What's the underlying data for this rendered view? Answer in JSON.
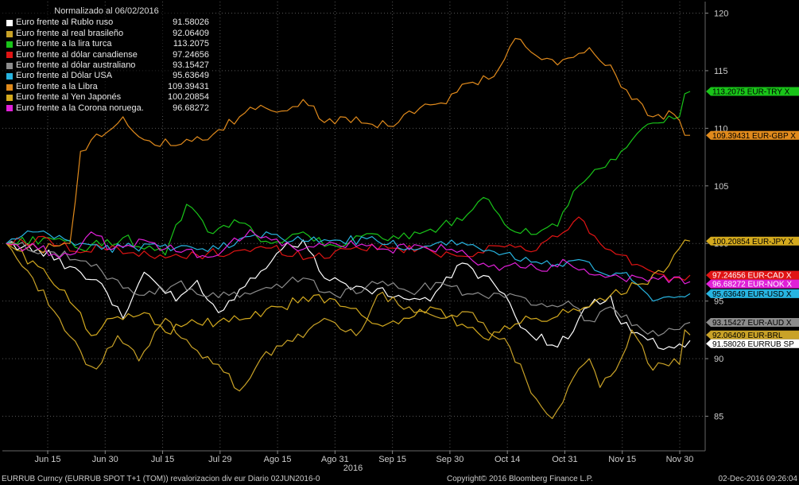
{
  "legend": {
    "title": "Normalizado al 06/02/2016",
    "items": [
      {
        "name": "Euro frente al Rublo ruso",
        "value": "91.58026",
        "color": "#ffffff"
      },
      {
        "name": "Euro frente al real brasileño",
        "value": "92.06409",
        "color": "#c9a227"
      },
      {
        "name": "Euro frente a la lira turca",
        "value": "113.2075",
        "color": "#19c419"
      },
      {
        "name": "Euro frente al dólar canadiense",
        "value": "97.24656",
        "color": "#e01414"
      },
      {
        "name": "Euro frente al dólar australiano",
        "value": "93.15427",
        "color": "#8c8c8c"
      },
      {
        "name": "Euro frente al Dólar USA",
        "value": "95.63649",
        "color": "#27b4e0"
      },
      {
        "name": "Euro frente a la Libra",
        "value": "109.39431",
        "color": "#e08a1c"
      },
      {
        "name": "Euro frente al Yen Japonés",
        "value": "100.20854",
        "color": "#d4aa1e"
      },
      {
        "name": "Euro frente a la Corona noruega.",
        "value": "96.68272",
        "color": "#e020d8"
      }
    ]
  },
  "footer": {
    "left": "EURRUB Curncy (EURRUB SPOT T+1 (TOM)) revalorizacion div eur  Diario 02JUN2016-0",
    "center": "Copyright© 2016 Bloomberg Finance L.P.",
    "right": "02-Dec-2016 09:26:04"
  },
  "chart_data": {
    "type": "line",
    "ylim": [
      82,
      121
    ],
    "y_ticks": [
      85,
      90,
      95,
      100,
      105,
      110,
      115,
      120
    ],
    "x_tick_labels": [
      "Jun 15",
      "Jun 30",
      "Jul 15",
      "Jul 29",
      "Ago 15",
      "Ago 31",
      "Sep 15",
      "Sep 30",
      "Oct 14",
      "Oct 31",
      "Nov 15",
      "Nov 30"
    ],
    "x_year_label": "2016",
    "n_points": 130,
    "grid": true,
    "legend_position": "top-left",
    "series": [
      {
        "name": "Euro frente al Rublo ruso",
        "color": "#ffffff",
        "tag": "91.58026  EURRUB SP",
        "anchors": [
          [
            0,
            100
          ],
          [
            6,
            99.5
          ],
          [
            12,
            98
          ],
          [
            18,
            96.5
          ],
          [
            22,
            93.5
          ],
          [
            26,
            97.5
          ],
          [
            32,
            95
          ],
          [
            36,
            96.8
          ],
          [
            40,
            94
          ],
          [
            46,
            97
          ],
          [
            52,
            99.5
          ],
          [
            56,
            100.3
          ],
          [
            60,
            97
          ],
          [
            64,
            96.5
          ],
          [
            68,
            96
          ],
          [
            74,
            95.5
          ],
          [
            80,
            95
          ],
          [
            86,
            98.3
          ],
          [
            92,
            96.5
          ],
          [
            98,
            92.5
          ],
          [
            104,
            91
          ],
          [
            110,
            94.5
          ],
          [
            114,
            95.5
          ],
          [
            116,
            93
          ],
          [
            120,
            92
          ],
          [
            124,
            90.8
          ],
          [
            128,
            91
          ],
          [
            129,
            91.58
          ]
        ]
      },
      {
        "name": "Euro frente al real brasileño",
        "color": "#c9a227",
        "tag": "92.06409  EUR-BRL",
        "anchors": [
          [
            0,
            100
          ],
          [
            5,
            97
          ],
          [
            10,
            93.5
          ],
          [
            15,
            89.5
          ],
          [
            17,
            89.1
          ],
          [
            21,
            92
          ],
          [
            25,
            89.8
          ],
          [
            30,
            93.5
          ],
          [
            35,
            91
          ],
          [
            40,
            89.5
          ],
          [
            44,
            87.2
          ],
          [
            48,
            90
          ],
          [
            54,
            91.5
          ],
          [
            60,
            93.5
          ],
          [
            66,
            92
          ],
          [
            70,
            95.5
          ],
          [
            76,
            94.5
          ],
          [
            82,
            93.5
          ],
          [
            88,
            94
          ],
          [
            95,
            91
          ],
          [
            100,
            86.5
          ],
          [
            103,
            84.8
          ],
          [
            106,
            87.5
          ],
          [
            110,
            90
          ],
          [
            112,
            87.5
          ],
          [
            116,
            90
          ],
          [
            118,
            92.5
          ],
          [
            122,
            89
          ],
          [
            126,
            90
          ],
          [
            127,
            89.5
          ],
          [
            128,
            92.5
          ],
          [
            129,
            92.06
          ]
        ]
      },
      {
        "name": "Euro frente a la lira turca",
        "color": "#19c419",
        "tag": "113.2075  EUR-TRY X",
        "anchors": [
          [
            0,
            100
          ],
          [
            8,
            100.5
          ],
          [
            14,
            99.5
          ],
          [
            22,
            100.5
          ],
          [
            30,
            99
          ],
          [
            34,
            103.4
          ],
          [
            38,
            101
          ],
          [
            44,
            101.8
          ],
          [
            50,
            100
          ],
          [
            56,
            101
          ],
          [
            62,
            99.8
          ],
          [
            70,
            100.8
          ],
          [
            76,
            100.4
          ],
          [
            82,
            101.5
          ],
          [
            86,
            102
          ],
          [
            90,
            104
          ],
          [
            96,
            101
          ],
          [
            100,
            100.8
          ],
          [
            104,
            101.5
          ],
          [
            108,
            105
          ],
          [
            112,
            106.5
          ],
          [
            116,
            108
          ],
          [
            120,
            110
          ],
          [
            124,
            110.5
          ],
          [
            127,
            111
          ],
          [
            128,
            113
          ],
          [
            129,
            113.2
          ]
        ]
      },
      {
        "name": "Euro frente al dólar canadiense",
        "color": "#e01414",
        "tag": "97.24656  EUR-CAD X",
        "anchors": [
          [
            0,
            100
          ],
          [
            8,
            100.4
          ],
          [
            14,
            99.2
          ],
          [
            20,
            99.8
          ],
          [
            28,
            98.7
          ],
          [
            36,
            99
          ],
          [
            44,
            99.4
          ],
          [
            50,
            99.6
          ],
          [
            58,
            98.8
          ],
          [
            66,
            99.7
          ],
          [
            72,
            99.6
          ],
          [
            80,
            99.4
          ],
          [
            86,
            98.9
          ],
          [
            92,
            99.8
          ],
          [
            100,
            99.4
          ],
          [
            106,
            101.2
          ],
          [
            108,
            102.3
          ],
          [
            112,
            100
          ],
          [
            116,
            99
          ],
          [
            120,
            98
          ],
          [
            124,
            97.3
          ],
          [
            128,
            96.8
          ],
          [
            129,
            97.25
          ]
        ]
      },
      {
        "name": "Euro frente al dólar australiano",
        "color": "#8c8c8c",
        "tag": "93.15427  EUR-AUD X",
        "anchors": [
          [
            0,
            100
          ],
          [
            8,
            99.3
          ],
          [
            14,
            98.5
          ],
          [
            20,
            97
          ],
          [
            26,
            95.5
          ],
          [
            32,
            96.5
          ],
          [
            40,
            95.3
          ],
          [
            48,
            96
          ],
          [
            56,
            97
          ],
          [
            62,
            95.5
          ],
          [
            70,
            96.5
          ],
          [
            76,
            95.8
          ],
          [
            82,
            96.6
          ],
          [
            88,
            95.6
          ],
          [
            96,
            95.5
          ],
          [
            102,
            94.5
          ],
          [
            106,
            95
          ],
          [
            110,
            93.3
          ],
          [
            114,
            94.5
          ],
          [
            120,
            92.5
          ],
          [
            124,
            92.2
          ],
          [
            128,
            93
          ],
          [
            129,
            93.15
          ]
        ]
      },
      {
        "name": "Euro frente al Dólar USA",
        "color": "#27b4e0",
        "tag": "95.63649  EUR-USD X",
        "anchors": [
          [
            0,
            100
          ],
          [
            6,
            101
          ],
          [
            12,
            100.2
          ],
          [
            18,
            99.5
          ],
          [
            24,
            99.7
          ],
          [
            30,
            99.9
          ],
          [
            38,
            99.3
          ],
          [
            44,
            100.4
          ],
          [
            50,
            100.8
          ],
          [
            56,
            100.2
          ],
          [
            62,
            100.3
          ],
          [
            70,
            100.2
          ],
          [
            76,
            99.6
          ],
          [
            84,
            100.3
          ],
          [
            92,
            99.3
          ],
          [
            98,
            98.8
          ],
          [
            104,
            98.2
          ],
          [
            108,
            98.6
          ],
          [
            112,
            97.5
          ],
          [
            116,
            97.4
          ],
          [
            118,
            96.8
          ],
          [
            120,
            96
          ],
          [
            122,
            95
          ],
          [
            126,
            95.3
          ],
          [
            129,
            95.64
          ]
        ]
      },
      {
        "name": "Euro frente a la Libra",
        "color": "#e08a1c",
        "tag": "109.39431  EUR-GBP X",
        "anchors": [
          [
            0,
            100
          ],
          [
            6,
            99.5
          ],
          [
            10,
            99.8
          ],
          [
            12,
            100
          ],
          [
            14,
            108
          ],
          [
            17,
            109.5
          ],
          [
            20,
            110
          ],
          [
            22,
            111
          ],
          [
            26,
            109
          ],
          [
            32,
            108.5
          ],
          [
            38,
            109
          ],
          [
            44,
            111
          ],
          [
            48,
            112
          ],
          [
            52,
            111.5
          ],
          [
            56,
            112.5
          ],
          [
            60,
            110.5
          ],
          [
            66,
            111
          ],
          [
            72,
            110.2
          ],
          [
            76,
            111.5
          ],
          [
            82,
            112.2
          ],
          [
            88,
            114
          ],
          [
            92,
            114.5
          ],
          [
            94,
            116
          ],
          [
            96,
            117.8
          ],
          [
            100,
            116.3
          ],
          [
            104,
            115.5
          ],
          [
            108,
            116.5
          ],
          [
            110,
            117
          ],
          [
            114,
            115.5
          ],
          [
            118,
            112.5
          ],
          [
            122,
            111
          ],
          [
            126,
            111.2
          ],
          [
            128,
            109.4
          ],
          [
            129,
            109.39
          ]
        ]
      },
      {
        "name": "Euro frente al Yen Japonés",
        "color": "#d4aa1e",
        "tag": "100.20854  EUR-JPY X",
        "anchors": [
          [
            0,
            100
          ],
          [
            6,
            98
          ],
          [
            10,
            96
          ],
          [
            14,
            94
          ],
          [
            16,
            92
          ],
          [
            20,
            93.5
          ],
          [
            26,
            94
          ],
          [
            30,
            92.3
          ],
          [
            34,
            93
          ],
          [
            40,
            93.2
          ],
          [
            46,
            93.5
          ],
          [
            52,
            94.5
          ],
          [
            58,
            95.5
          ],
          [
            64,
            94.5
          ],
          [
            70,
            93
          ],
          [
            76,
            93.5
          ],
          [
            80,
            94.5
          ],
          [
            86,
            93
          ],
          [
            90,
            91.8
          ],
          [
            96,
            93
          ],
          [
            100,
            93.5
          ],
          [
            106,
            94
          ],
          [
            110,
            94.5
          ],
          [
            114,
            95.5
          ],
          [
            120,
            96.5
          ],
          [
            124,
            97.5
          ],
          [
            128,
            100.3
          ],
          [
            129,
            100.21
          ]
        ]
      },
      {
        "name": "Euro frente a la Corona noruega.",
        "color": "#e020d8",
        "tag": "96.68272  EUR-NOK X",
        "anchors": [
          [
            0,
            100
          ],
          [
            6,
            99.5
          ],
          [
            12,
            99
          ],
          [
            16,
            101
          ],
          [
            20,
            99.5
          ],
          [
            26,
            100.3
          ],
          [
            32,
            99.3
          ],
          [
            40,
            99
          ],
          [
            46,
            101.2
          ],
          [
            50,
            100.3
          ],
          [
            56,
            99.5
          ],
          [
            62,
            100
          ],
          [
            70,
            99.5
          ],
          [
            78,
            99.8
          ],
          [
            84,
            99.5
          ],
          [
            88,
            98.5
          ],
          [
            94,
            98
          ],
          [
            100,
            97.8
          ],
          [
            106,
            98.3
          ],
          [
            112,
            97.3
          ],
          [
            116,
            97
          ],
          [
            120,
            97
          ],
          [
            124,
            97.2
          ],
          [
            128,
            96.5
          ],
          [
            129,
            96.68
          ]
        ]
      }
    ]
  }
}
